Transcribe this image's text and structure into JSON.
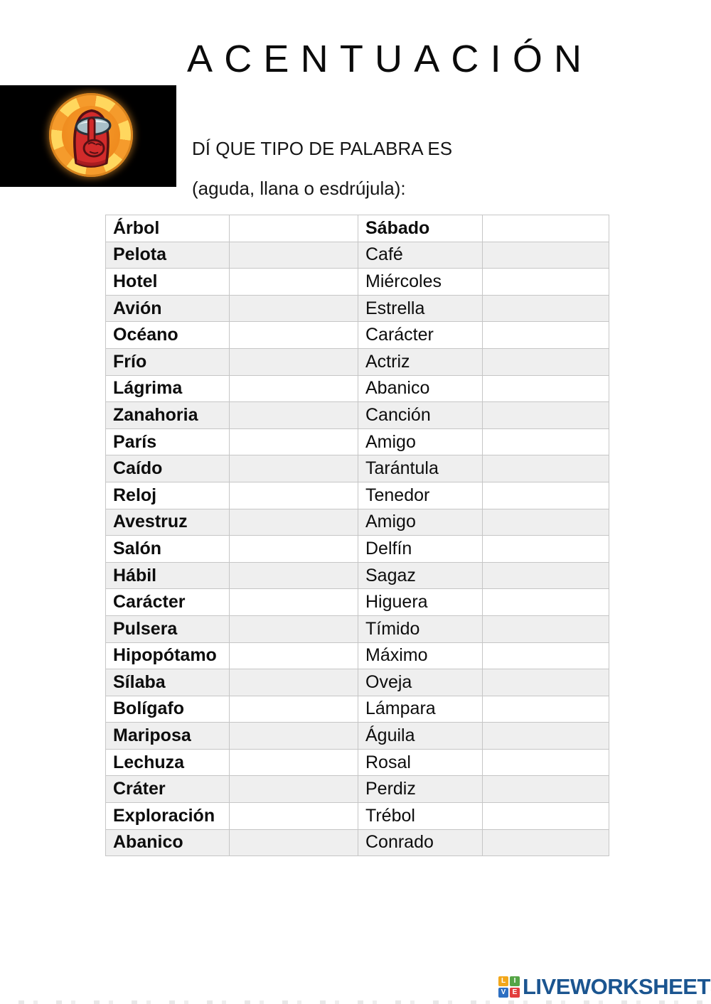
{
  "header": {
    "title": "ACENTUACIÓN"
  },
  "hero": {
    "icon": "among-us-shh-emblem"
  },
  "instructions": {
    "line1": "DÍ QUE TIPO DE PALABRA ES",
    "line2": "(aguda, llana o esdrújula):"
  },
  "table": {
    "rows": [
      {
        "left": "Árbol",
        "right": "Sábado"
      },
      {
        "left": "Pelota",
        "right": "Café"
      },
      {
        "left": "Hotel",
        "right": "Miércoles"
      },
      {
        "left": "Avión",
        "right": "Estrella"
      },
      {
        "left": "Océano",
        "right": "Carácter"
      },
      {
        "left": "Frío",
        "right": "Actriz"
      },
      {
        "left": "Lágrima",
        "right": "Abanico"
      },
      {
        "left": "Zanahoria",
        "right": "Canción"
      },
      {
        "left": "París",
        "right": "Amigo"
      },
      {
        "left": "Caído",
        "right": "Tarántula"
      },
      {
        "left": "Reloj",
        "right": "Tenedor"
      },
      {
        "left": "Avestruz",
        "right": "Amigo"
      },
      {
        "left": "Salón",
        "right": "Delfín"
      },
      {
        "left": "Hábil",
        "right": "Sagaz"
      },
      {
        "left": "Carácter",
        "right": "Higuera"
      },
      {
        "left": "Pulsera",
        "right": "Tímido"
      },
      {
        "left": "Hipopótamo",
        "right": "Máximo"
      },
      {
        "left": "Sílaba",
        "right": "Oveja"
      },
      {
        "left": "Bolígafo",
        "right": "Lámpara"
      },
      {
        "left": "Mariposa",
        "right": "Águila"
      },
      {
        "left": "Lechuza",
        "right": "Rosal"
      },
      {
        "left": "Cráter",
        "right": "Perdiz"
      },
      {
        "left": "Exploración",
        "right": "Trébol"
      },
      {
        "left": "Abanico",
        "right": "Conrado"
      }
    ],
    "answer_value": ""
  },
  "footer": {
    "brand": "LIVEWORKSHEETS",
    "logo_letters": [
      "L",
      "I",
      "V",
      "E"
    ]
  },
  "colors": {
    "sunburst_orange": "#f59b2c",
    "sunburst_yellow": "#ffd75e",
    "disc_orange": "#ef8a1d",
    "crewmate_red": "#d22b2b",
    "crewmate_shade": "#a31a1e",
    "crewmate_outline": "#551014",
    "visor_gray": "#a9c0c8",
    "visor_highlight": "#e8f1f3",
    "image_background": "#000000",
    "row_alt_gray": "#efefef",
    "table_border": "#c6c6c6",
    "brand_navy": "#1b5590",
    "logo_orange": "#f2a71b",
    "logo_green": "#55a546",
    "logo_blue": "#2d6fc2",
    "logo_red": "#e23d3d"
  }
}
